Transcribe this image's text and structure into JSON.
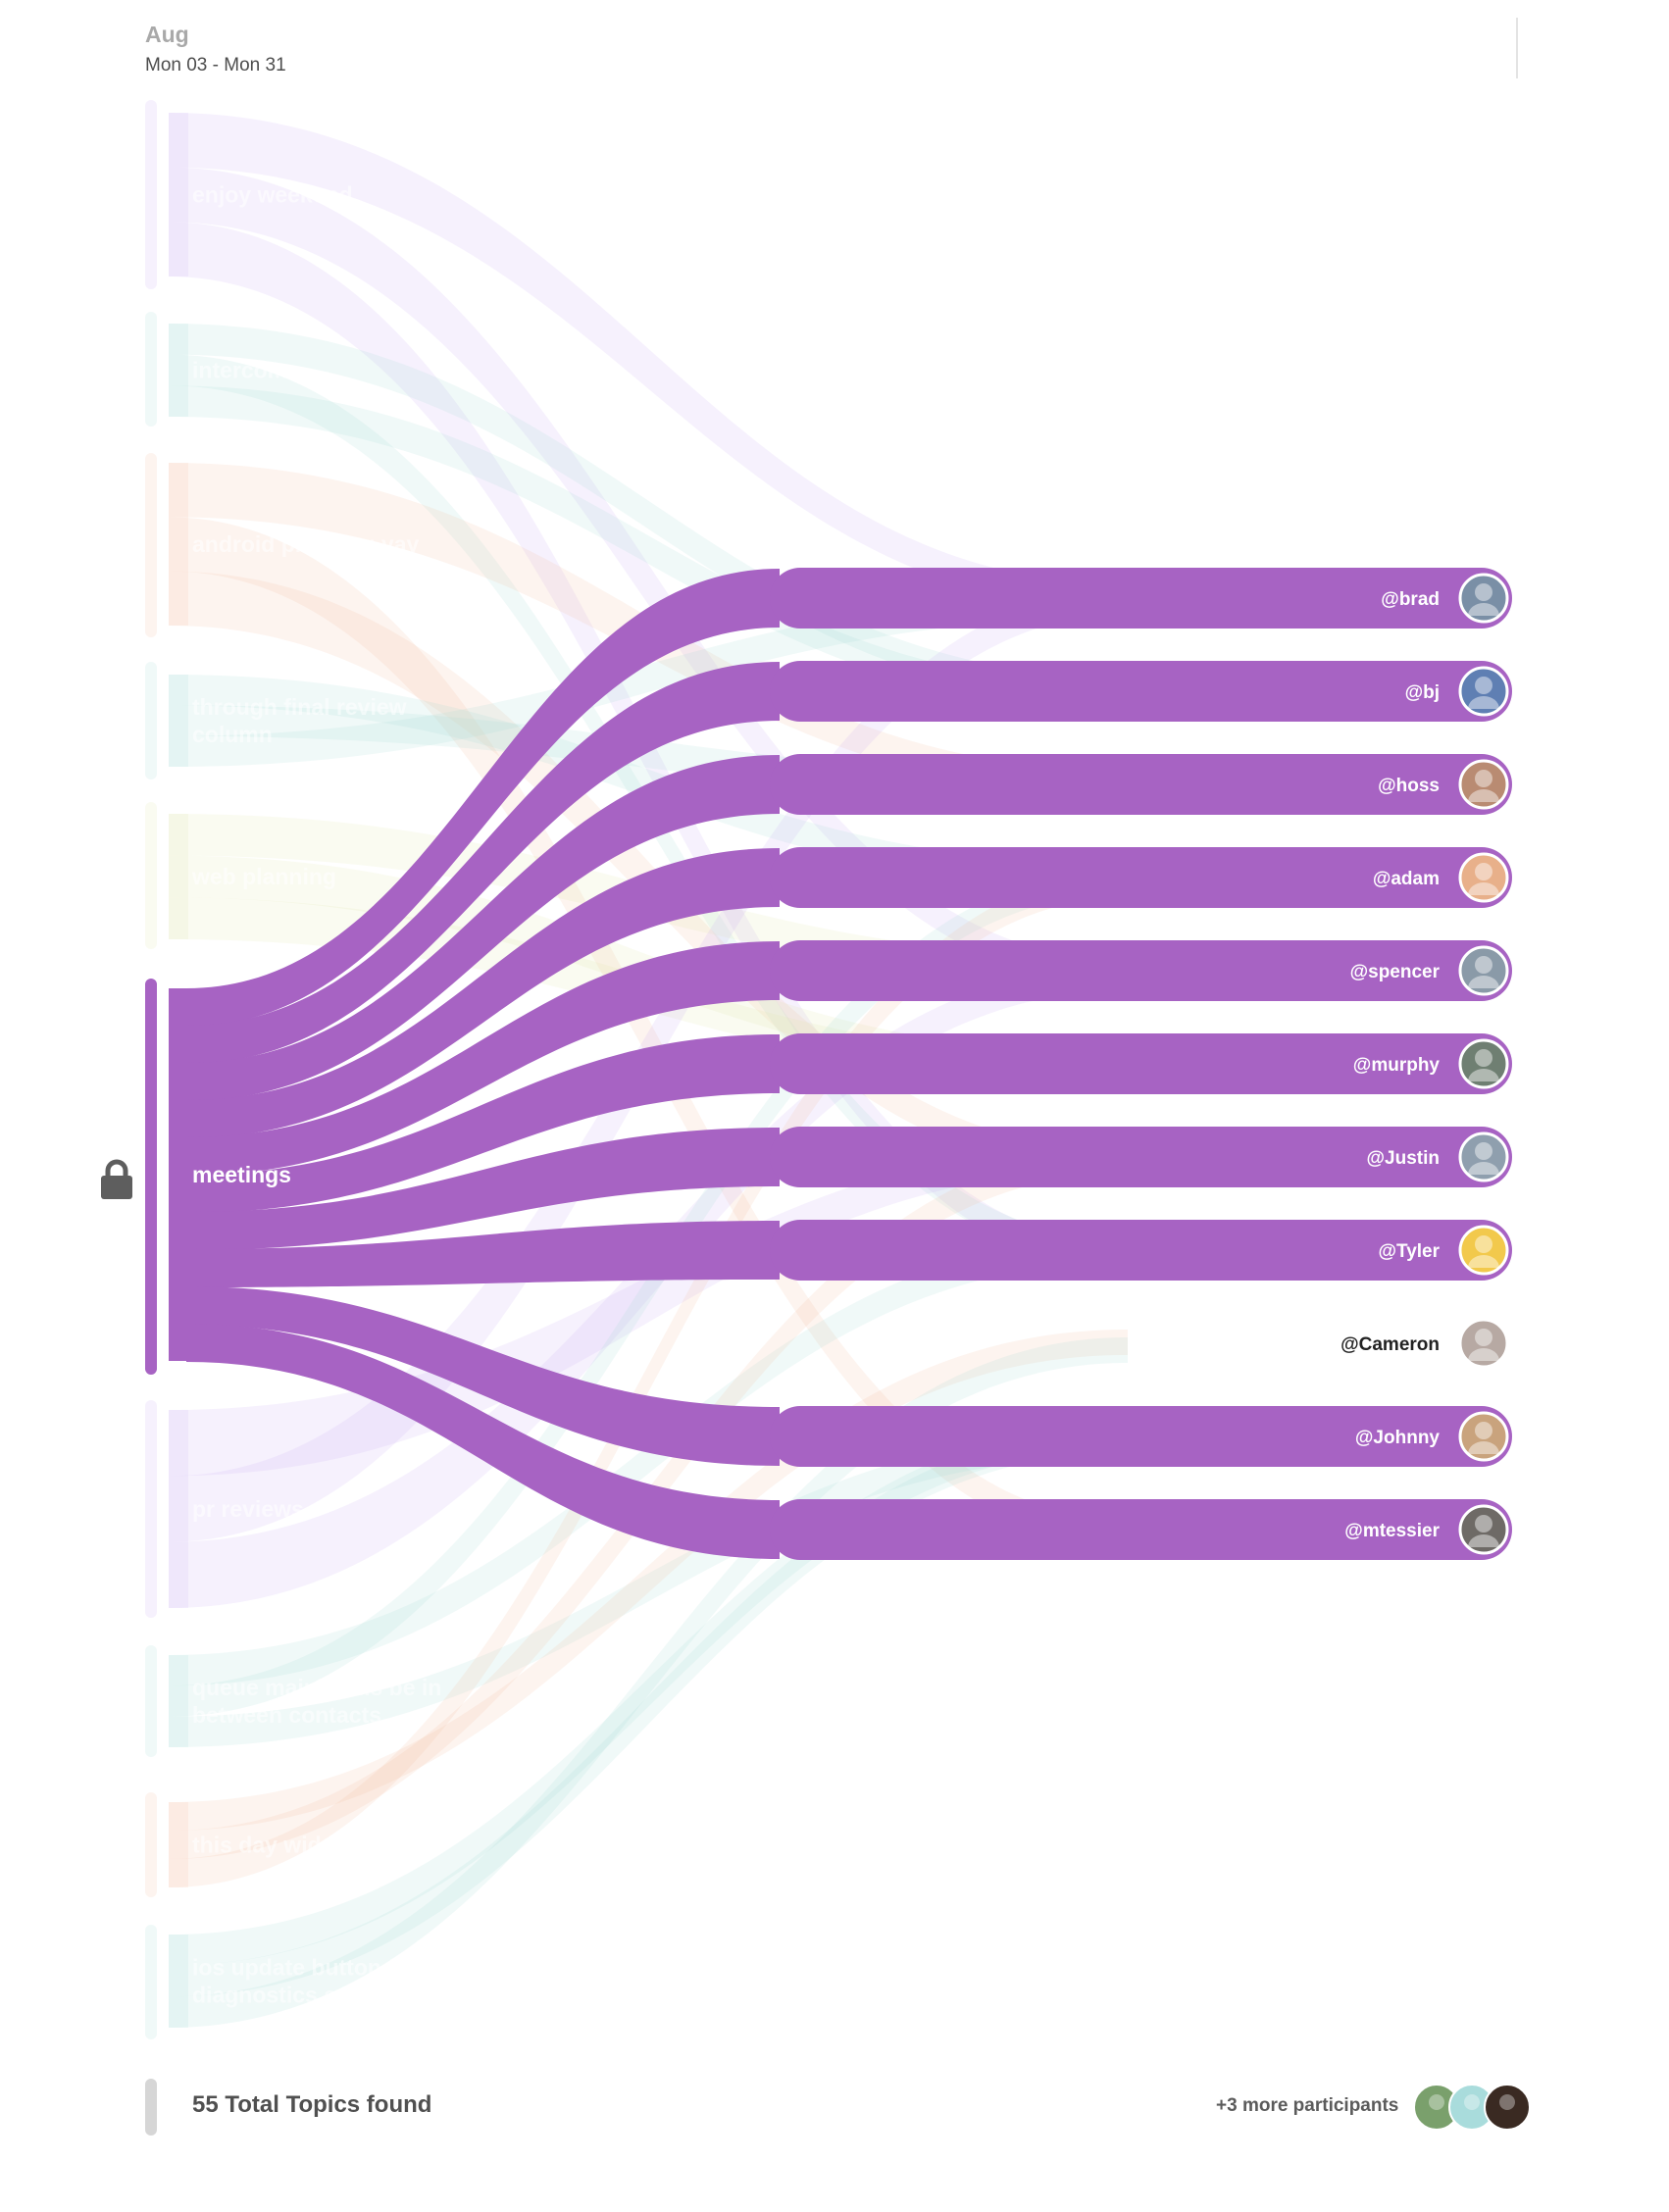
{
  "header": {
    "month": "Aug",
    "date_range": "Mon 03 - Mon 31"
  },
  "topics": [
    {
      "lines": [
        "enjoy weekend"
      ],
      "color": "#c9a7f0",
      "active": false
    },
    {
      "lines": [
        "intercom"
      ],
      "color": "#9fdbd6",
      "active": false
    },
    {
      "lines": [
        "android planning yay"
      ],
      "color": "#f5b99a",
      "active": false
    },
    {
      "lines": [
        "through final review",
        "column"
      ],
      "color": "#9fdbd6",
      "active": false
    },
    {
      "lines": [
        "web planning"
      ],
      "color": "#dfe4a6",
      "active": false
    },
    {
      "lines": [
        "meetings"
      ],
      "color": "#a763c3",
      "active": true
    },
    {
      "lines": [
        "pr reviews"
      ],
      "color": "#c9a7f0",
      "active": false
    },
    {
      "lines": [
        "queue mainly this be in",
        "between contacts"
      ],
      "color": "#9fdbd6",
      "active": false
    },
    {
      "lines": [
        "this day widget"
      ],
      "color": "#f5b99a",
      "active": false
    },
    {
      "lines": [
        "ios update button for",
        "diagnostics screen"
      ],
      "color": "#9fdbd6",
      "active": false
    }
  ],
  "participants": [
    {
      "handle": "@brad",
      "avatar_color": "#7a8fa6",
      "highlighted": true
    },
    {
      "handle": "@bj",
      "avatar_color": "#5f7fb3",
      "highlighted": true
    },
    {
      "handle": "@hoss",
      "avatar_color": "#b98b72",
      "highlighted": true
    },
    {
      "handle": "@adam",
      "avatar_color": "#e8b08a",
      "highlighted": true
    },
    {
      "handle": "@spencer",
      "avatar_color": "#8a9aa8",
      "highlighted": true
    },
    {
      "handle": "@murphy",
      "avatar_color": "#6f7f72",
      "highlighted": true
    },
    {
      "handle": "@Justin",
      "avatar_color": "#8f9fae",
      "highlighted": true
    },
    {
      "handle": "@Tyler",
      "avatar_color": "#f2c94c",
      "highlighted": true
    },
    {
      "handle": "@Cameron",
      "avatar_color": "#b7a9a3",
      "highlighted": false
    },
    {
      "handle": "@Johnny",
      "avatar_color": "#c9a37d",
      "highlighted": true
    },
    {
      "handle": "@mtessier",
      "avatar_color": "#6e6a66",
      "highlighted": true
    }
  ],
  "colors": {
    "active_flow": "#a763c3",
    "text_on_active": "#ffffff",
    "inactive_participant_text": "#222222"
  },
  "footer": {
    "total_topics": "55 Total Topics found",
    "more_participants": "+3 more participants",
    "avatar_colors": [
      "#7aa06c",
      "#a9dcdc",
      "#3a2a22"
    ]
  },
  "icons": {
    "lock": "lock-icon"
  }
}
